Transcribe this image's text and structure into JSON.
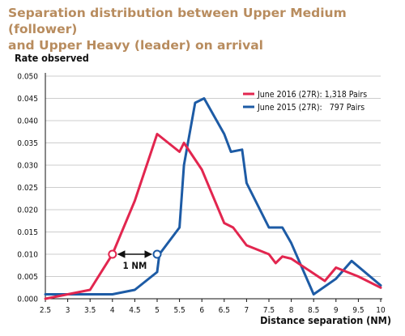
{
  "title_lines": [
    "Separation distribution between Upper Medium (follower)",
    "and Upper Heavy (leader) on arrival"
  ],
  "chart_data": {
    "type": "line",
    "ylabel": "Rate observed",
    "xlabel": "Distance separation (NM)",
    "xlim": [
      2.5,
      10
    ],
    "ylim": [
      0,
      0.05
    ],
    "x_ticks": [
      "2.5",
      "3",
      "3.5",
      "4",
      "4.5",
      "5",
      "5.5",
      "6",
      "6.5",
      "7",
      "7.5",
      "8",
      "8.5",
      "9",
      "9.5",
      "10"
    ],
    "y_ticks": [
      "0.000",
      "0.005",
      "0.010",
      "0.015",
      "0.020",
      "0.025",
      "0.030",
      "0.035",
      "0.040",
      "0.045",
      "0.050"
    ],
    "grid": "horizontal",
    "legend_position": "top-right",
    "series": [
      {
        "name": "June 2016 (27R): 1,318 Pairs",
        "color": "#e2264f",
        "points": [
          [
            2.5,
            0.0
          ],
          [
            3.0,
            0.001
          ],
          [
            3.5,
            0.002
          ],
          [
            4.0,
            0.01
          ],
          [
            4.5,
            0.022
          ],
          [
            5.0,
            0.037
          ],
          [
            5.25,
            0.035
          ],
          [
            5.5,
            0.033
          ],
          [
            5.6,
            0.035
          ],
          [
            6.0,
            0.029
          ],
          [
            6.5,
            0.017
          ],
          [
            6.7,
            0.016
          ],
          [
            7.0,
            0.012
          ],
          [
            7.5,
            0.01
          ],
          [
            7.65,
            0.008
          ],
          [
            7.8,
            0.0095
          ],
          [
            8.0,
            0.009
          ],
          [
            8.75,
            0.004
          ],
          [
            9.0,
            0.007
          ],
          [
            9.5,
            0.005
          ],
          [
            10.0,
            0.0025
          ]
        ]
      },
      {
        "name": "June 2015 (27R):   797 Pairs",
        "color": "#1d5ba5",
        "points": [
          [
            2.5,
            0.001
          ],
          [
            3.0,
            0.001
          ],
          [
            3.5,
            0.001
          ],
          [
            4.0,
            0.001
          ],
          [
            4.5,
            0.002
          ],
          [
            5.0,
            0.006
          ],
          [
            5.05,
            0.01
          ],
          [
            5.5,
            0.016
          ],
          [
            5.6,
            0.03
          ],
          [
            5.85,
            0.044
          ],
          [
            6.05,
            0.045
          ],
          [
            6.5,
            0.037
          ],
          [
            6.65,
            0.033
          ],
          [
            6.9,
            0.0335
          ],
          [
            7.0,
            0.026
          ],
          [
            7.5,
            0.016
          ],
          [
            7.8,
            0.016
          ],
          [
            8.0,
            0.0125
          ],
          [
            8.5,
            0.001
          ],
          [
            9.0,
            0.0045
          ],
          [
            9.35,
            0.0085
          ],
          [
            10.0,
            0.003
          ]
        ]
      }
    ],
    "annotation": {
      "text": "1 NM",
      "from": [
        4.0,
        0.01
      ],
      "to": [
        5.0,
        0.01
      ]
    }
  }
}
